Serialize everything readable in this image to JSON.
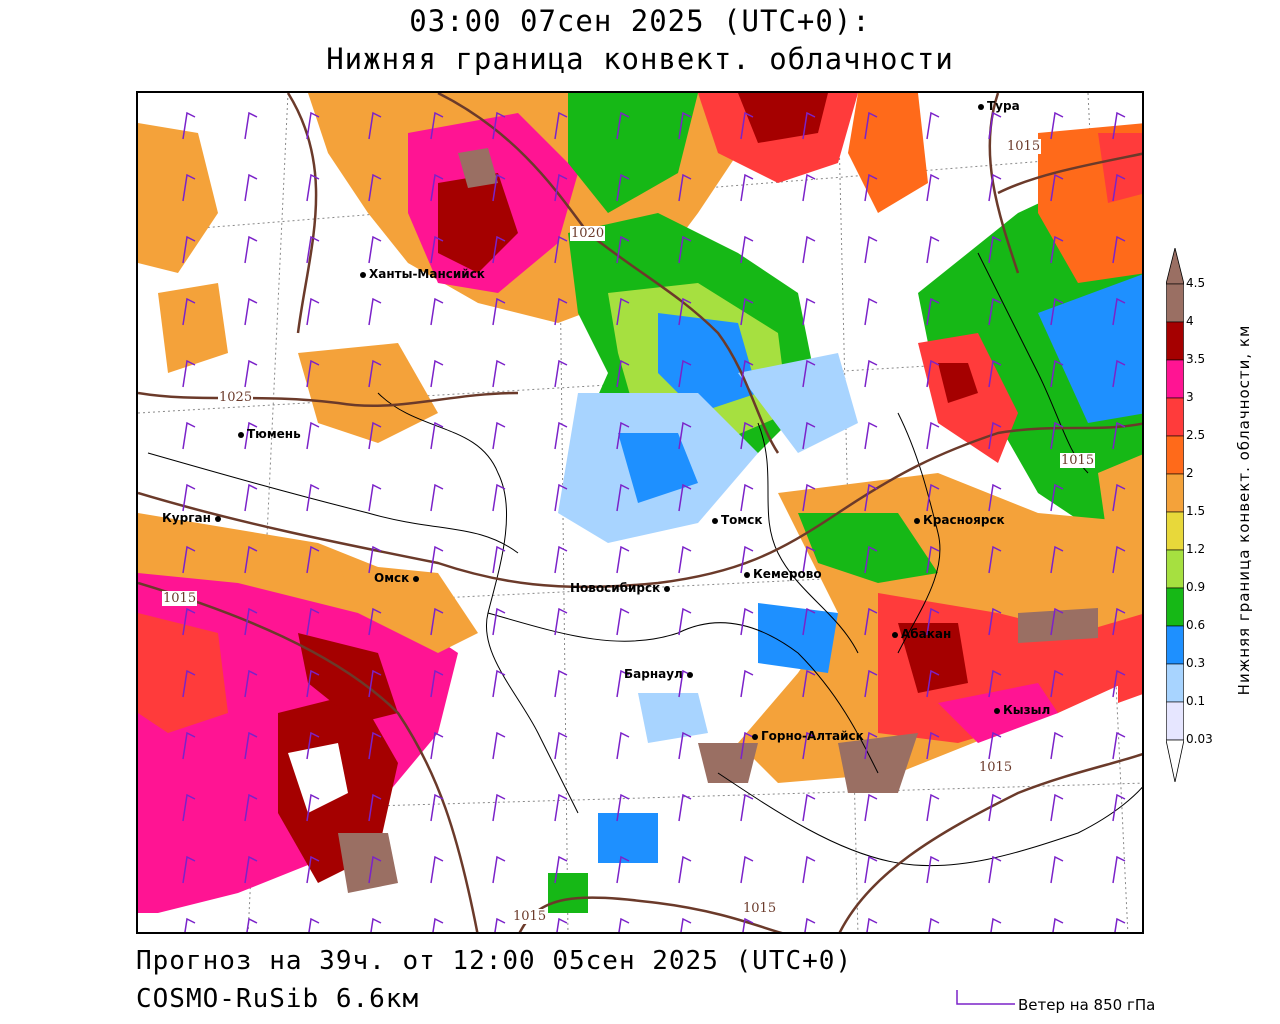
{
  "header": {
    "title_line1": "03:00 07сен 2025 (UTC+0):",
    "title_line2": "Нижняя граница конвект. облачности"
  },
  "footer": {
    "forecast": "Прогноз на 39ч. от 12:00 05сен 2025 (UTC+0)",
    "model": "COSMO-RuSib 6.6км",
    "wind_legend": "Ветер на 850 гПа"
  },
  "colorbar": {
    "title": "Нижняя граница конвект. облачности, км",
    "ticks": [
      "4.5",
      "4",
      "3.5",
      "3",
      "2.5",
      "2",
      "1.5",
      "1.2",
      "0.9",
      "0.6",
      "0.3",
      "0.1",
      "0.03"
    ],
    "colors": [
      "#9a6f63",
      "#a50000",
      "#ff1493",
      "#ff3b3b",
      "#ff6a1a",
      "#f4a23a",
      "#e8d83a",
      "#a6e040",
      "#16b816",
      "#1e90ff",
      "#a8d4ff",
      "#e6e6ff"
    ]
  },
  "cities": [
    {
      "name": "Тура"
    },
    {
      "name": "Ханты-Мансийск"
    },
    {
      "name": "Тюмень"
    },
    {
      "name": "Курган"
    },
    {
      "name": "Омск"
    },
    {
      "name": "Новосибирск"
    },
    {
      "name": "Томск"
    },
    {
      "name": "Кемерово"
    },
    {
      "name": "Красноярск"
    },
    {
      "name": "Абакан"
    },
    {
      "name": "Барнаул"
    },
    {
      "name": "Горно-Алтайск"
    },
    {
      "name": "Кызыл"
    }
  ],
  "isobars": [
    "1015",
    "1020",
    "1025",
    "1015",
    "1015",
    "1015",
    "1015",
    "1015"
  ]
}
